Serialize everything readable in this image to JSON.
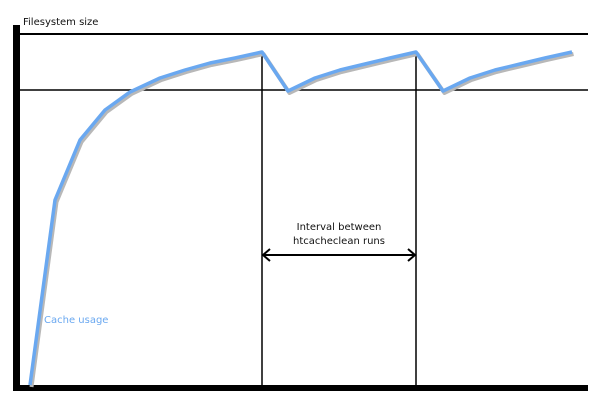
{
  "diagram": {
    "y_axis_label": "Filesystem size",
    "interval_label_line1": "Interval between",
    "interval_label_line2": "htcacheclean runs",
    "curve_label": "Cache usage",
    "colors": {
      "curve": "#6aa8f0",
      "axes": "#000000",
      "shadow": "#b0b0b0"
    }
  }
}
